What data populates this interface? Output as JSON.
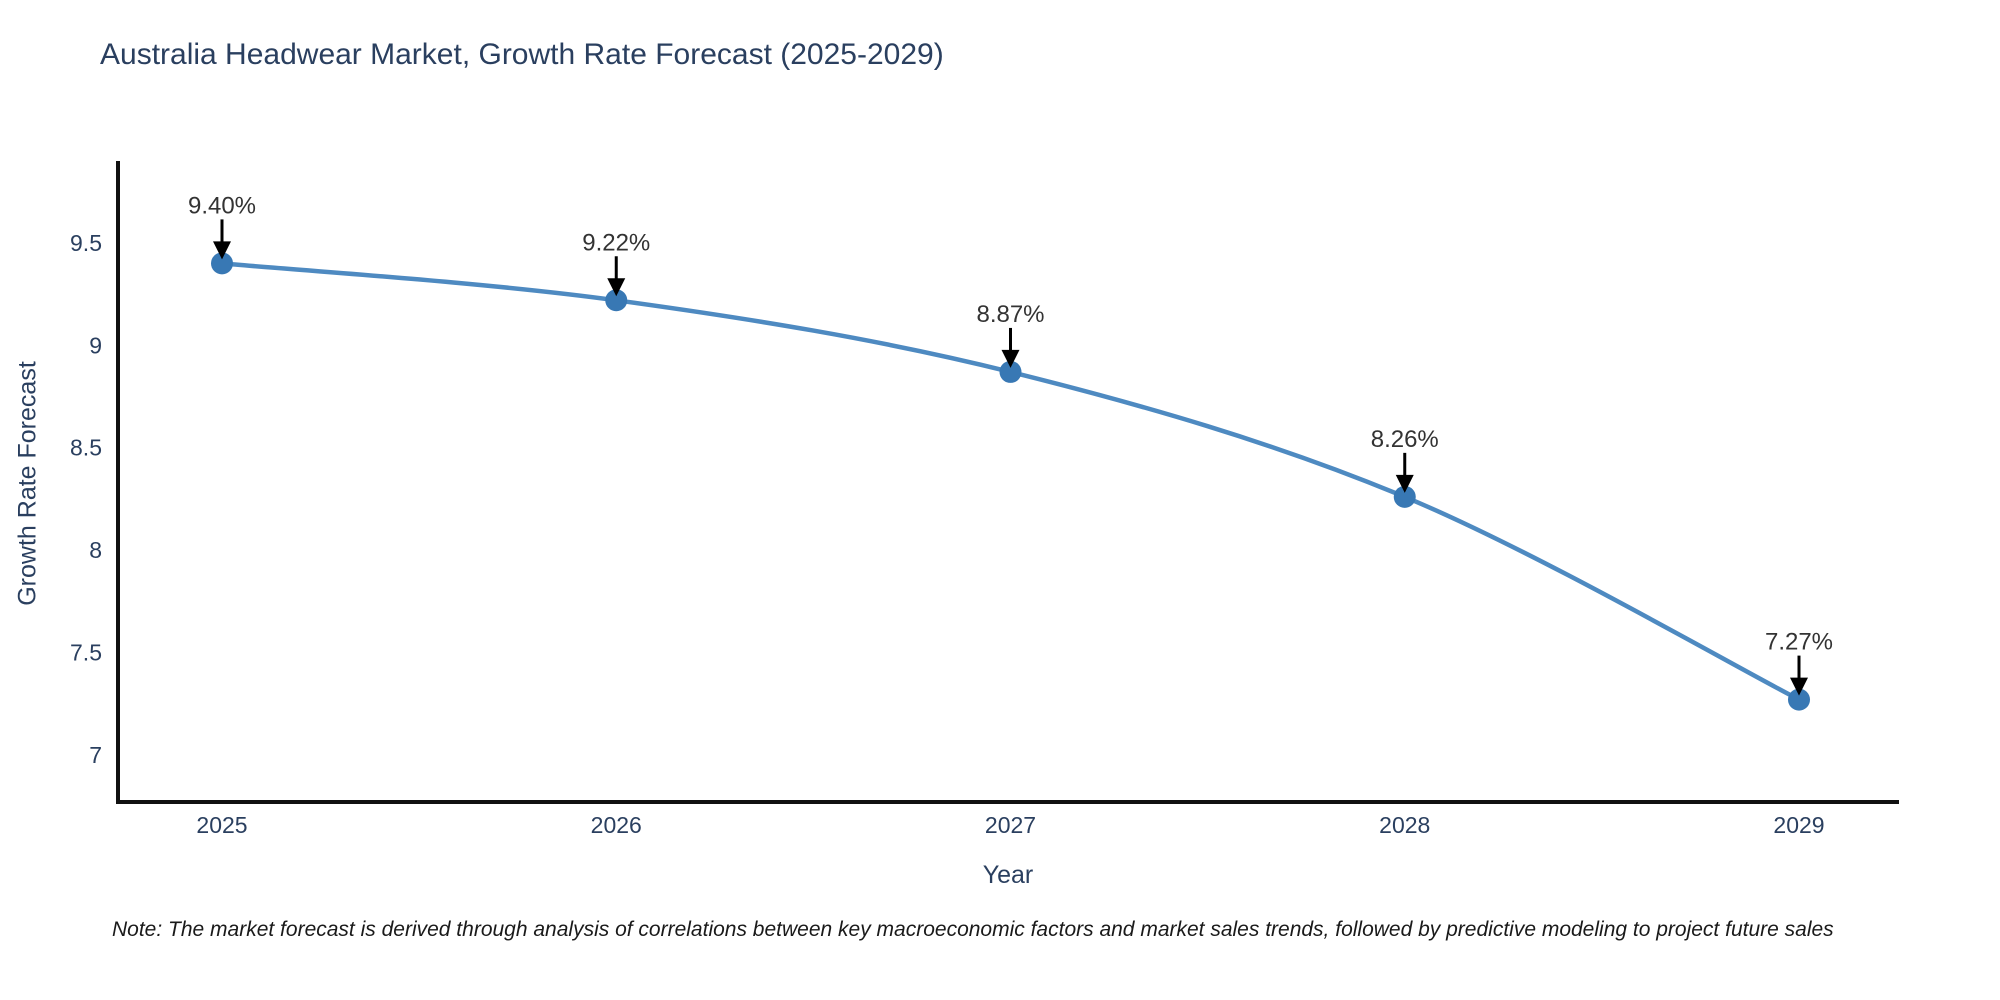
{
  "title": "Australia Headwear Market, Growth Rate Forecast (2025-2029)",
  "note": "Note: The market forecast is derived through analysis of correlations between key macroeconomic factors and market sales trends, followed by predictive modeling to project future sales",
  "chart_data": {
    "type": "line",
    "title": "Australia Headwear Market, Growth Rate Forecast (2025-2029)",
    "xlabel": "Year",
    "ylabel": "Growth Rate Forecast",
    "categories": [
      "2025",
      "2026",
      "2027",
      "2028",
      "2029"
    ],
    "values": [
      9.4,
      9.22,
      8.87,
      8.26,
      7.27
    ],
    "point_labels": [
      "9.40%",
      "9.22%",
      "8.87%",
      "8.26%",
      "7.27%"
    ],
    "yticks": [
      7,
      7.5,
      8,
      8.5,
      9,
      9.5
    ],
    "ylim": [
      6.77,
      9.9
    ],
    "grid": false,
    "legend": null,
    "line_shape": "spline",
    "annotation_style": "label-above-with-down-arrow",
    "colors": {
      "line": "#4e8ac1",
      "marker": "#3878b4",
      "arrow": "#000000",
      "title_text": "#2a3f5f",
      "tick_text": "#2a3f5f",
      "annotation_text": "#333333",
      "axis_line": "#111111",
      "background": "#ffffff"
    }
  }
}
